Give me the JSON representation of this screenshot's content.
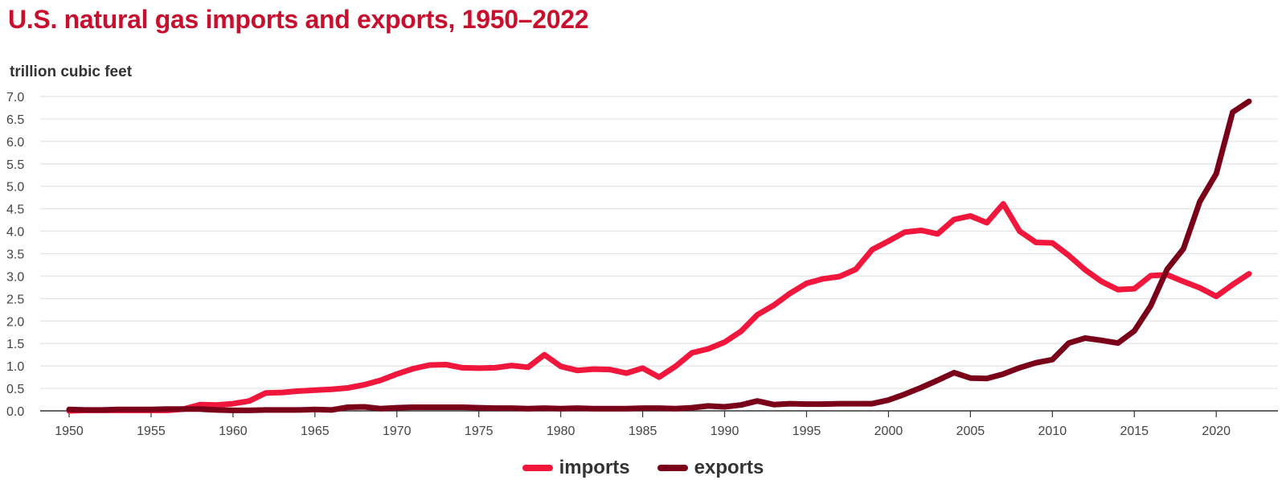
{
  "chart_data": {
    "type": "line",
    "title": "U.S. natural gas imports and exports, 1950–2022",
    "ylabel": "trillion cubic feet",
    "xlabel": "",
    "x": [
      1950,
      1951,
      1952,
      1953,
      1954,
      1955,
      1956,
      1957,
      1958,
      1959,
      1960,
      1961,
      1962,
      1963,
      1964,
      1965,
      1966,
      1967,
      1968,
      1969,
      1970,
      1971,
      1972,
      1973,
      1974,
      1975,
      1976,
      1977,
      1978,
      1979,
      1980,
      1981,
      1982,
      1983,
      1984,
      1985,
      1986,
      1987,
      1988,
      1989,
      1990,
      1991,
      1992,
      1993,
      1994,
      1995,
      1996,
      1997,
      1998,
      1999,
      2000,
      2001,
      2002,
      2003,
      2004,
      2005,
      2006,
      2007,
      2008,
      2009,
      2010,
      2011,
      2012,
      2013,
      2014,
      2015,
      2016,
      2017,
      2018,
      2019,
      2020,
      2021,
      2022
    ],
    "xlim": [
      1950,
      2022
    ],
    "ylim": [
      0,
      7.0
    ],
    "x_ticks": [
      1950,
      1955,
      1960,
      1965,
      1970,
      1975,
      1980,
      1985,
      1990,
      1995,
      2000,
      2005,
      2010,
      2015,
      2020
    ],
    "y_ticks": [
      "0.0",
      "0.5",
      "1.0",
      "1.5",
      "2.0",
      "2.5",
      "3.0",
      "3.5",
      "4.0",
      "4.5",
      "5.0",
      "5.5",
      "6.0",
      "6.5",
      "7.0"
    ],
    "grid": true,
    "legend_position": "bottom",
    "series": [
      {
        "name": "imports",
        "color": "#f0163c",
        "values": [
          0.0,
          0.01,
          0.01,
          0.01,
          0.01,
          0.01,
          0.01,
          0.04,
          0.14,
          0.13,
          0.16,
          0.22,
          0.4,
          0.41,
          0.44,
          0.46,
          0.48,
          0.51,
          0.58,
          0.68,
          0.82,
          0.94,
          1.02,
          1.03,
          0.96,
          0.95,
          0.96,
          1.01,
          0.97,
          1.25,
          0.99,
          0.9,
          0.93,
          0.92,
          0.84,
          0.95,
          0.75,
          0.99,
          1.29,
          1.38,
          1.53,
          1.77,
          2.14,
          2.35,
          2.62,
          2.84,
          2.94,
          2.99,
          3.15,
          3.59,
          3.78,
          3.98,
          4.02,
          3.94,
          4.26,
          4.34,
          4.19,
          4.61,
          4.0,
          3.75,
          3.74,
          3.46,
          3.14,
          2.88,
          2.7,
          2.72,
          3.01,
          3.03,
          2.88,
          2.74,
          2.55,
          2.81,
          3.05
        ]
      },
      {
        "name": "exports",
        "color": "#7a0019",
        "values": [
          0.03,
          0.02,
          0.02,
          0.03,
          0.03,
          0.03,
          0.04,
          0.04,
          0.04,
          0.02,
          0.01,
          0.01,
          0.02,
          0.02,
          0.02,
          0.03,
          0.02,
          0.08,
          0.09,
          0.05,
          0.07,
          0.08,
          0.08,
          0.08,
          0.08,
          0.07,
          0.06,
          0.06,
          0.05,
          0.06,
          0.05,
          0.06,
          0.05,
          0.05,
          0.05,
          0.06,
          0.06,
          0.05,
          0.07,
          0.11,
          0.09,
          0.13,
          0.22,
          0.14,
          0.16,
          0.15,
          0.15,
          0.16,
          0.16,
          0.16,
          0.24,
          0.37,
          0.52,
          0.68,
          0.85,
          0.73,
          0.72,
          0.82,
          0.96,
          1.07,
          1.14,
          1.51,
          1.62,
          1.57,
          1.51,
          1.78,
          2.34,
          3.15,
          3.61,
          4.66,
          5.28,
          6.65,
          6.89
        ]
      }
    ]
  }
}
